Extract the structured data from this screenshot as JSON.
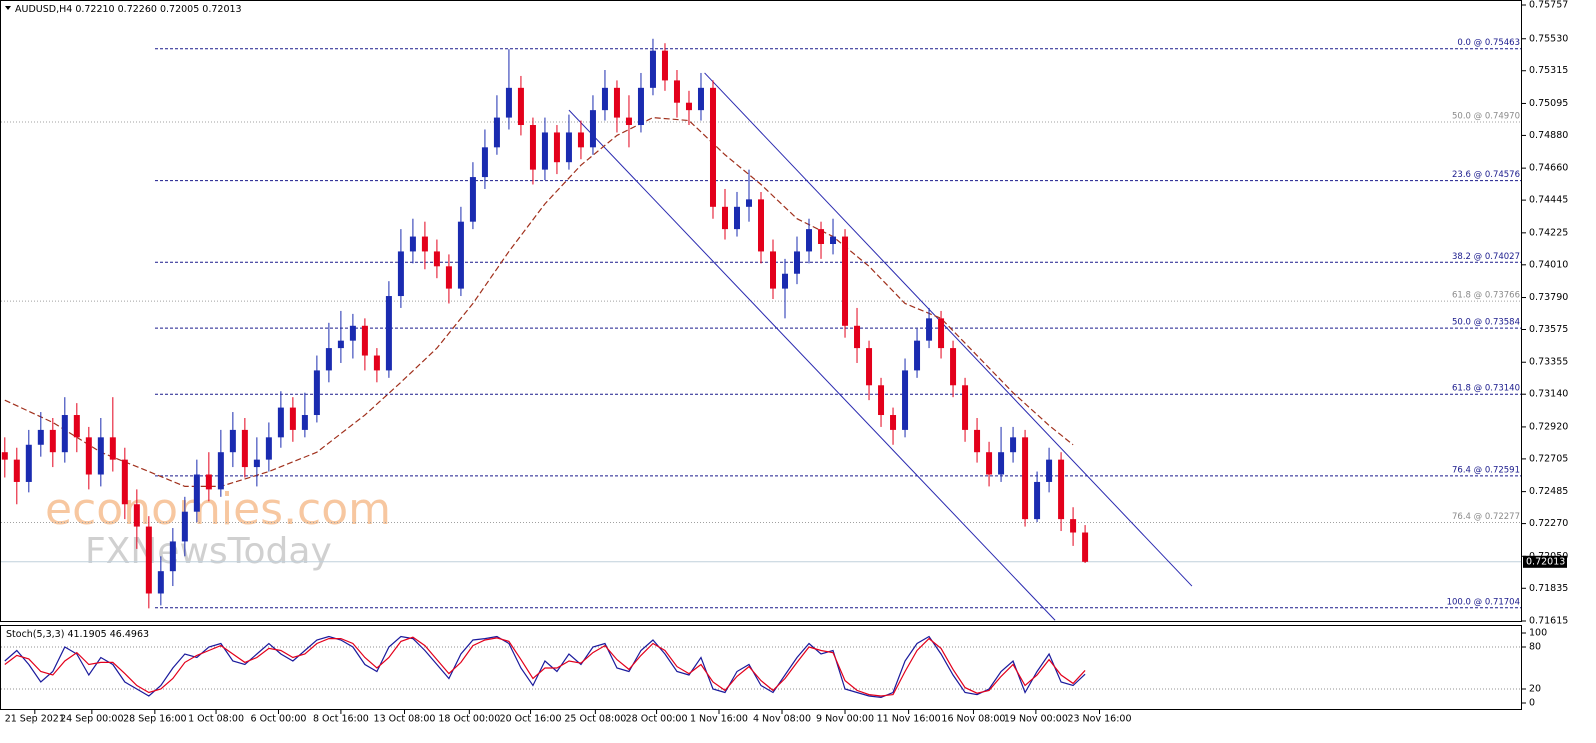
{
  "chart_data": {
    "type": "candlestick",
    "symbol": "AUDUSD,H4",
    "last_bar_labels": [
      "0.72210",
      "0.72260",
      "0.72005",
      "0.72013"
    ],
    "up_color": "#1a2bb0",
    "down_color": "#e3001b",
    "xlim": [
      -0.4,
      126.4
    ],
    "ylim": [
      0.71615,
      0.75757
    ],
    "yticks": [
      {
        "value": 0.75757,
        "label": "0.75757"
      },
      {
        "value": 0.7553,
        "label": "0.75530"
      },
      {
        "value": 0.75315,
        "label": "0.75315"
      },
      {
        "value": 0.75095,
        "label": "0.75095"
      },
      {
        "value": 0.7488,
        "label": "0.74880"
      },
      {
        "value": 0.7466,
        "label": "0.74660"
      },
      {
        "value": 0.74445,
        "label": "0.74445"
      },
      {
        "value": 0.74225,
        "label": "0.74225"
      },
      {
        "value": 0.7401,
        "label": "0.74010"
      },
      {
        "value": 0.7379,
        "label": "0.73790"
      },
      {
        "value": 0.73575,
        "label": "0.73575"
      },
      {
        "value": 0.73355,
        "label": "0.73355"
      },
      {
        "value": 0.7314,
        "label": "0.73140"
      },
      {
        "value": 0.7292,
        "label": "0.72920"
      },
      {
        "value": 0.72705,
        "label": "0.72705"
      },
      {
        "value": 0.72485,
        "label": "0.72485"
      },
      {
        "value": 0.7227,
        "label": "0.72270"
      },
      {
        "value": 0.7205,
        "label": "0.72050"
      },
      {
        "value": 0.71835,
        "label": "0.71835"
      },
      {
        "value": 0.71615,
        "label": "0.71615"
      }
    ],
    "x_labels": [
      {
        "value": 2.5,
        "label": "21 Sep 2021"
      },
      {
        "value": 7.25,
        "label": "24 Sep 00:00"
      },
      {
        "value": 12.5,
        "label": "28 Sep 16:00"
      },
      {
        "value": 17.6,
        "label": "1 Oct 08:00"
      },
      {
        "value": 22.8,
        "label": "6 Oct 00:00"
      },
      {
        "value": 28,
        "label": "8 Oct 16:00"
      },
      {
        "value": 33.3,
        "label": "13 Oct 08:00"
      },
      {
        "value": 38.7,
        "label": "18 Oct 00:00"
      },
      {
        "value": 43.8,
        "label": "20 Oct 16:00"
      },
      {
        "value": 49.2,
        "label": "25 Oct 08:00"
      },
      {
        "value": 54.3,
        "label": "28 Oct 00:00"
      },
      {
        "value": 59.5,
        "label": "1 Nov 16:00"
      },
      {
        "value": 64.75,
        "label": "4 Nov 08:00"
      },
      {
        "value": 70,
        "label": "9 Nov 00:00"
      },
      {
        "value": 75.3,
        "label": "11 Nov 16:00"
      },
      {
        "value": 80.7,
        "label": "16 Nov 08:00"
      },
      {
        "value": 85.9,
        "label": "19 Nov 00:00"
      },
      {
        "value": 91.2,
        "label": "23 Nov 16:00"
      }
    ],
    "open": [
      0.7275,
      0.727,
      0.7255,
      0.728,
      0.729,
      0.7275,
      0.73,
      0.7285,
      0.726,
      0.7285,
      0.727,
      0.724,
      0.7225,
      0.718,
      0.7195,
      0.7215,
      0.7235,
      0.726,
      0.725,
      0.7275,
      0.729,
      0.7265,
      0.727,
      0.7285,
      0.7305,
      0.729,
      0.73,
      0.733,
      0.7345,
      0.735,
      0.736,
      0.734,
      0.733,
      0.738,
      0.741,
      0.742,
      0.741,
      0.74,
      0.7385,
      0.743,
      0.746,
      0.748,
      0.75,
      0.752,
      0.7495,
      0.7465,
      0.749,
      0.747,
      0.749,
      0.748,
      0.7505,
      0.752,
      0.75,
      0.7495,
      0.752,
      0.7545,
      0.7525,
      0.751,
      0.7505,
      0.752,
      0.744,
      0.7425,
      0.744,
      0.7445,
      0.741,
      0.7385,
      0.7395,
      0.741,
      0.7425,
      0.7415,
      0.742,
      0.736,
      0.7345,
      0.732,
      0.73,
      0.729,
      0.733,
      0.735,
      0.7365,
      0.7345,
      0.732,
      0.729,
      0.7275,
      0.726,
      0.7275,
      0.7285,
      0.723,
      0.7255,
      0.727,
      0.723,
      0.7221
    ],
    "high": [
      0.7285,
      0.7278,
      0.729,
      0.7302,
      0.7298,
      0.7312,
      0.7308,
      0.7292,
      0.7298,
      0.7312,
      0.7278,
      0.725,
      0.7232,
      0.7205,
      0.7224,
      0.7245,
      0.727,
      0.7275,
      0.729,
      0.7302,
      0.7298,
      0.7285,
      0.7295,
      0.7316,
      0.7312,
      0.7315,
      0.734,
      0.7362,
      0.737,
      0.7368,
      0.7365,
      0.7345,
      0.739,
      0.7425,
      0.7432,
      0.743,
      0.7418,
      0.7408,
      0.744,
      0.747,
      0.7492,
      0.7515,
      0.7546,
      0.7528,
      0.75,
      0.75,
      0.7495,
      0.7502,
      0.7498,
      0.7515,
      0.7532,
      0.7525,
      0.7515,
      0.753,
      0.7553,
      0.755,
      0.7532,
      0.7518,
      0.753,
      0.7525,
      0.7452,
      0.745,
      0.7465,
      0.745,
      0.7418,
      0.7405,
      0.742,
      0.7432,
      0.743,
      0.7432,
      0.7425,
      0.7372,
      0.735,
      0.7325,
      0.7305,
      0.7338,
      0.7358,
      0.7372,
      0.737,
      0.735,
      0.7325,
      0.7298,
      0.7282,
      0.7292,
      0.7292,
      0.729,
      0.7262,
      0.7278,
      0.7275,
      0.7238,
      0.7226
    ],
    "low": [
      0.7258,
      0.724,
      0.7248,
      0.7272,
      0.7265,
      0.7268,
      0.7275,
      0.725,
      0.7252,
      0.7262,
      0.723,
      0.721,
      0.717,
      0.7172,
      0.7185,
      0.7205,
      0.7228,
      0.7242,
      0.7245,
      0.7265,
      0.7258,
      0.7252,
      0.7262,
      0.7278,
      0.7282,
      0.7285,
      0.7295,
      0.7322,
      0.7335,
      0.7338,
      0.733,
      0.7322,
      0.7325,
      0.7372,
      0.7402,
      0.7398,
      0.7392,
      0.7375,
      0.738,
      0.7425,
      0.7452,
      0.7475,
      0.7492,
      0.7488,
      0.7455,
      0.7458,
      0.7462,
      0.7465,
      0.7472,
      0.7475,
      0.7498,
      0.749,
      0.748,
      0.749,
      0.7515,
      0.7518,
      0.75,
      0.7495,
      0.7498,
      0.7432,
      0.7418,
      0.742,
      0.743,
      0.7402,
      0.7378,
      0.7365,
      0.7388,
      0.7402,
      0.7405,
      0.7408,
      0.7352,
      0.7335,
      0.731,
      0.7292,
      0.728,
      0.7285,
      0.7325,
      0.7345,
      0.7338,
      0.7312,
      0.7282,
      0.7268,
      0.7252,
      0.7255,
      0.7268,
      0.7225,
      0.7228,
      0.7248,
      0.7222,
      0.7212,
      0.72005
    ],
    "close": [
      0.727,
      0.7255,
      0.728,
      0.729,
      0.7275,
      0.73,
      0.7285,
      0.726,
      0.7285,
      0.727,
      0.724,
      0.7225,
      0.718,
      0.7195,
      0.7215,
      0.7235,
      0.726,
      0.725,
      0.7275,
      0.729,
      0.7265,
      0.727,
      0.7285,
      0.7305,
      0.729,
      0.73,
      0.733,
      0.7345,
      0.735,
      0.736,
      0.734,
      0.733,
      0.738,
      0.741,
      0.742,
      0.741,
      0.74,
      0.7385,
      0.743,
      0.746,
      0.748,
      0.75,
      0.752,
      0.7495,
      0.7465,
      0.749,
      0.747,
      0.749,
      0.748,
      0.7505,
      0.752,
      0.75,
      0.7495,
      0.752,
      0.7545,
      0.7525,
      0.751,
      0.7505,
      0.752,
      0.744,
      0.7425,
      0.744,
      0.7445,
      0.741,
      0.7385,
      0.7395,
      0.741,
      0.7425,
      0.7415,
      0.742,
      0.736,
      0.7345,
      0.732,
      0.73,
      0.729,
      0.733,
      0.735,
      0.7365,
      0.7345,
      0.732,
      0.729,
      0.7275,
      0.726,
      0.7275,
      0.7285,
      0.723,
      0.7255,
      0.727,
      0.723,
      0.7221,
      0.72013
    ],
    "ma": {
      "color": "#a0301c",
      "x": [
        0,
        4,
        8,
        12,
        15,
        18,
        22,
        26,
        30,
        33,
        36,
        39,
        42,
        45,
        48,
        51,
        54,
        57,
        60,
        63,
        66,
        69,
        72,
        75,
        78,
        81,
        84,
        87,
        89
      ],
      "values": [
        0.731,
        0.7295,
        0.7275,
        0.7262,
        0.7252,
        0.7252,
        0.7262,
        0.7275,
        0.73,
        0.7322,
        0.7345,
        0.7375,
        0.741,
        0.7442,
        0.7468,
        0.7488,
        0.75,
        0.7498,
        0.7475,
        0.7455,
        0.7432,
        0.742,
        0.74,
        0.7375,
        0.7365,
        0.734,
        0.7315,
        0.7293,
        0.728
      ]
    },
    "channel_lines": [
      {
        "x": [
          58.3,
          98.9
        ],
        "values": [
          0.753,
          0.7185
        ]
      },
      {
        "x": [
          47,
          87.5
        ],
        "values": [
          0.7505,
          0.7162
        ]
      }
    ],
    "fib_levels": [
      {
        "value": 0.75463,
        "label": "0.0 @ 0.75463",
        "style": "blue"
      },
      {
        "value": 0.7497,
        "label": "50.0 @ 0.74970",
        "style": "grey"
      },
      {
        "value": 0.74576,
        "label": "23.6 @ 0.74576",
        "style": "blue"
      },
      {
        "value": 0.74027,
        "label": "38.2 @ 0.74027",
        "style": "blue"
      },
      {
        "value": 0.73766,
        "label": "61.8 @ 0.73766",
        "style": "grey"
      },
      {
        "value": 0.73584,
        "label": "50.0 @ 0.73584",
        "style": "blue"
      },
      {
        "value": 0.7314,
        "label": "61.8 @ 0.73140",
        "style": "blue"
      },
      {
        "value": 0.72591,
        "label": "76.4 @ 0.72591",
        "style": "blue"
      },
      {
        "value": 0.72277,
        "label": "76.4 @ 0.72277",
        "style": "grey"
      },
      {
        "value": 0.71704,
        "label": "100.0 @ 0.71704",
        "style": "blue"
      }
    ],
    "watermark": [
      "economies.com",
      "FXNewsToday"
    ],
    "indicator": {
      "name": "Stoch(5,3,3)",
      "ylim": [
        0,
        100
      ],
      "yticks": [
        100,
        80,
        20,
        0
      ],
      "levels": [
        80,
        20
      ],
      "series": [
        {
          "color": "#1a1a9c",
          "values": [
            60,
            75,
            55,
            30,
            45,
            80,
            70,
            40,
            65,
            55,
            30,
            20,
            10,
            25,
            50,
            70,
            65,
            80,
            85,
            60,
            55,
            70,
            85,
            70,
            60,
            75,
            90,
            95,
            90,
            80,
            55,
            45,
            80,
            95,
            92,
            75,
            55,
            35,
            70,
            90,
            92,
            95,
            85,
            50,
            25,
            60,
            45,
            70,
            55,
            80,
            85,
            50,
            45,
            75,
            90,
            70,
            45,
            40,
            65,
            20,
            15,
            45,
            55,
            25,
            15,
            40,
            65,
            85,
            70,
            75,
            20,
            15,
            10,
            8,
            15,
            60,
            85,
            95,
            70,
            40,
            15,
            12,
            20,
            45,
            60,
            15,
            45,
            70,
            30,
            25,
            41.1905
          ]
        },
        {
          "color": "#e3001b",
          "values": [
            55,
            68,
            63,
            45,
            40,
            60,
            72,
            55,
            58,
            58,
            42,
            25,
            15,
            20,
            35,
            58,
            68,
            75,
            82,
            70,
            58,
            65,
            78,
            75,
            65,
            70,
            85,
            92,
            92,
            85,
            65,
            50,
            65,
            88,
            94,
            82,
            62,
            42,
            58,
            82,
            90,
            93,
            88,
            62,
            35,
            50,
            50,
            60,
            57,
            72,
            82,
            62,
            48,
            68,
            85,
            75,
            52,
            42,
            55,
            30,
            18,
            38,
            52,
            32,
            18,
            35,
            58,
            80,
            75,
            72,
            32,
            18,
            12,
            10,
            12,
            45,
            75,
            92,
            78,
            48,
            22,
            14,
            18,
            38,
            55,
            25,
            40,
            62,
            40,
            28,
            46.4963
          ]
        }
      ]
    }
  }
}
